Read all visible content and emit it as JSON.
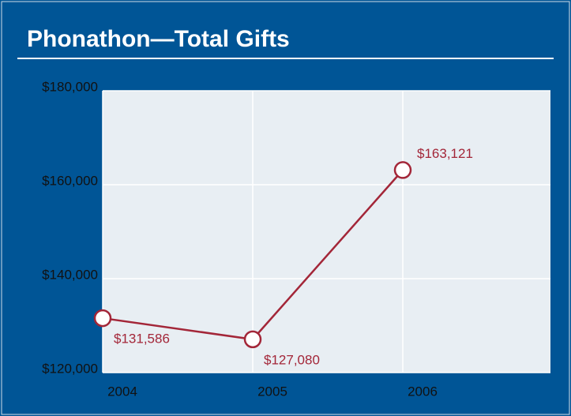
{
  "chart_data": {
    "type": "line",
    "title": "Phonathon—Total Gifts",
    "x": [
      2004,
      2005,
      2006
    ],
    "series": [
      {
        "name": "Total Gifts",
        "color": "#a32638",
        "values": [
          131586,
          127080,
          163121
        ],
        "value_labels": [
          "$131,586",
          "$127,080",
          "$163,121"
        ]
      }
    ],
    "xlim": [
      2004,
      2007
    ],
    "xticks": [
      2004,
      2005,
      2006
    ],
    "ylim": [
      120000,
      180000
    ],
    "yticks": [
      {
        "value": 120000,
        "label": "$120,000"
      },
      {
        "value": 140000,
        "label": "$140,000"
      },
      {
        "value": 160000,
        "label": "$160,000"
      },
      {
        "value": 180000,
        "label": "$180,000"
      }
    ],
    "grid": true
  }
}
